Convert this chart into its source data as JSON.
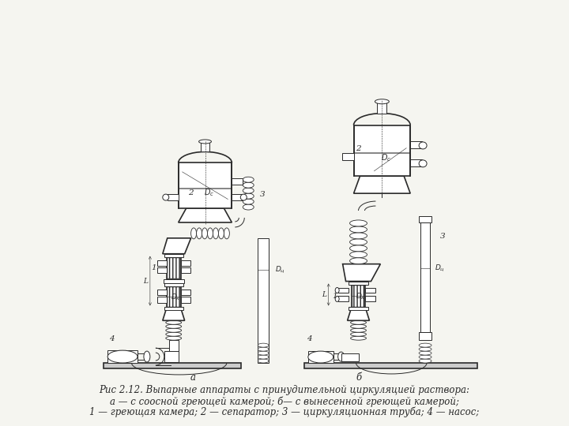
{
  "bg_color": "#f5f5f0",
  "line_color": "#2a2a2a",
  "fig_width": 7.2,
  "fig_height": 5.4,
  "caption_line1": "Рис 2.12. Выпарные аппараты с принудительной циркуляцией раствора:",
  "caption_line2": "а — с соосной греющей камерой; б— с вынесенной греющей камерой;",
  "caption_line3": "1 — греющая камера; 2 — сепаратор; 3 — циркуляционная труба; 4 — насос;",
  "caption_fontsize": 8.5,
  "label_a": "а",
  "label_b": "б"
}
